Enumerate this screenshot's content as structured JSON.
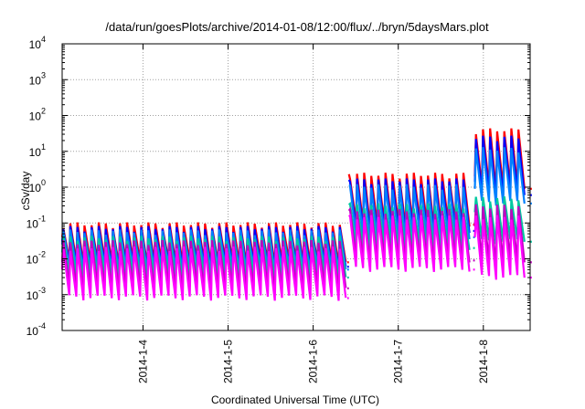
{
  "chart_data": {
    "type": "line",
    "title": "/data/run/goesPlots/archive/2014-01-08/12:00/flux/../bryn/5daysMars.plot",
    "xlabel": "Coordinated Universal Time (UTC)",
    "ylabel": "cSv/day",
    "x_range_days": [
      3.05,
      8.55
    ],
    "x_range_note": "x values are days of January 2014 (UTC)",
    "ylim": [
      0.0001,
      10000
    ],
    "y_scale": "log",
    "grid": true,
    "legend": "none",
    "y_ticks": [
      {
        "base": "10",
        "exp": "-4"
      },
      {
        "base": "10",
        "exp": "-3"
      },
      {
        "base": "10",
        "exp": "-2"
      },
      {
        "base": "10",
        "exp": "-1"
      },
      {
        "base": "10",
        "exp": "0"
      },
      {
        "base": "10",
        "exp": "1"
      },
      {
        "base": "10",
        "exp": "2"
      },
      {
        "base": "10",
        "exp": "3"
      },
      {
        "base": "10",
        "exp": "4"
      }
    ],
    "x_ticks": [
      {
        "label": "2014-1-4",
        "day": 4
      },
      {
        "label": "2014-1-5",
        "day": 5
      },
      {
        "label": "2014-1-6",
        "day": 6
      },
      {
        "label": "2014-1-7",
        "day": 7
      },
      {
        "label": "2014-1-8",
        "day": 8
      }
    ],
    "cycle_hours": 2,
    "series": [
      {
        "color": "#ff0000",
        "segments": [
          {
            "x": [
              3.05,
              6.4
            ],
            "peak": 0.095,
            "trough": 0.008,
            "start": 0.04
          },
          {
            "x": [
              6.42,
              7.88
            ],
            "peak": 2.3,
            "trough": 0.09
          },
          {
            "x": [
              7.9,
              8.55
            ],
            "peak": 40.0,
            "trough": 0.9,
            "start": 2.0
          }
        ]
      },
      {
        "color": "#0000ff",
        "segments": [
          {
            "x": [
              3.05,
              6.4
            ],
            "peak": 0.075,
            "trough": 0.006,
            "start": 0.03
          },
          {
            "x": [
              6.42,
              7.88
            ],
            "peak": 1.6,
            "trough": 0.06
          },
          {
            "x": [
              7.9,
              8.55
            ],
            "peak": 25.0,
            "trough": 0.6,
            "start": 1.4
          }
        ]
      },
      {
        "color": "#0080ff",
        "segments": [
          {
            "x": [
              3.05,
              6.4
            ],
            "peak": 0.06,
            "trough": 0.005,
            "start": 0.025
          },
          {
            "x": [
              6.42,
              7.88
            ],
            "peak": 1.1,
            "trough": 0.04
          },
          {
            "x": [
              7.9,
              8.55
            ],
            "peak": 12.0,
            "trough": 0.35,
            "start": 0.9
          }
        ]
      },
      {
        "color": "#00c8a0",
        "segments": [
          {
            "x": [
              3.05,
              6.4
            ],
            "peak": 0.04,
            "trough": 0.003,
            "start": 0.015
          },
          {
            "x": [
              6.42,
              7.88
            ],
            "peak": 0.32,
            "trough": 0.02
          },
          {
            "x": [
              7.9,
              8.55
            ],
            "peak": 0.5,
            "trough": 0.03,
            "start": 0.2
          }
        ]
      },
      {
        "color": "#c000c0",
        "segments": [
          {
            "x": [
              3.05,
              6.4
            ],
            "peak": 0.03,
            "trough": 0.0015,
            "start": 0.008
          },
          {
            "x": [
              6.42,
              7.88
            ],
            "peak": 0.22,
            "trough": 0.009
          },
          {
            "x": [
              7.9,
              8.55
            ],
            "peak": 0.3,
            "trough": 0.008,
            "start": 0.08
          }
        ]
      },
      {
        "color": "#ff00ff",
        "segments": [
          {
            "x": [
              3.05,
              6.4
            ],
            "peak": 0.02,
            "trough": 0.0008,
            "start": 0.005
          },
          {
            "x": [
              6.42,
              7.88
            ],
            "peak": 0.15,
            "trough": 0.005
          },
          {
            "x": [
              7.9,
              8.55
            ],
            "peak": 0.15,
            "trough": 0.003,
            "start": 0.04
          }
        ]
      }
    ],
    "colors": {
      "axis": "#000000",
      "grid": "#a0a0a0",
      "background": "#ffffff"
    }
  }
}
